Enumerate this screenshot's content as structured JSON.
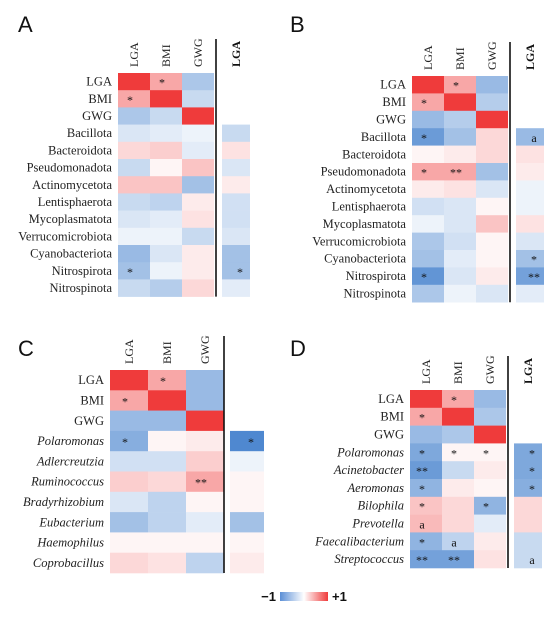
{
  "chart_data": [
    {
      "type": "heatmap",
      "panel": "A",
      "columns": [
        "LGA",
        "BMI",
        "GWG"
      ],
      "extra_column": "LGA",
      "rows": [
        "LGA",
        "BMI",
        "GWG",
        "Bacillota",
        "Bacteroidota",
        "Pseudomonadota",
        "Actinomycetota",
        "Lentisphaerota",
        "Mycoplasmatota",
        "Verrucomicrobiota",
        "Cyanobacteriota",
        "Nitrospirota",
        "Nitrospinota"
      ],
      "italic_from_row": 99,
      "values": [
        [
          1.0,
          0.45,
          -0.45,
          null
        ],
        [
          0.45,
          1.0,
          -0.3,
          null
        ],
        [
          -0.45,
          -0.3,
          1.0,
          null
        ],
        [
          -0.2,
          -0.15,
          -0.1,
          -0.3
        ],
        [
          0.2,
          0.25,
          -0.15,
          0.15
        ],
        [
          -0.3,
          0.05,
          0.3,
          -0.2
        ],
        [
          0.3,
          0.3,
          -0.5,
          0.1
        ],
        [
          -0.3,
          -0.35,
          0.1,
          -0.25
        ],
        [
          -0.2,
          -0.15,
          0.15,
          -0.25
        ],
        [
          -0.1,
          -0.1,
          -0.3,
          -0.2
        ],
        [
          -0.55,
          -0.2,
          0.1,
          -0.5
        ],
        [
          -0.5,
          -0.1,
          0.1,
          -0.5
        ],
        [
          -0.3,
          -0.4,
          0.2,
          -0.15
        ]
      ],
      "marks": [
        [
          "",
          "*",
          "",
          ""
        ],
        [
          "*",
          "",
          "",
          ""
        ],
        [
          "",
          "",
          "",
          ""
        ],
        [
          "",
          "",
          "",
          ""
        ],
        [
          "",
          "",
          "",
          ""
        ],
        [
          "",
          "",
          "",
          ""
        ],
        [
          "",
          "",
          "",
          ""
        ],
        [
          "",
          "",
          "",
          ""
        ],
        [
          "",
          "",
          "",
          ""
        ],
        [
          "",
          "",
          "",
          ""
        ],
        [
          "",
          "",
          "",
          ""
        ],
        [
          "*",
          "",
          "",
          "*"
        ],
        [
          "",
          "",
          "",
          ""
        ]
      ]
    },
    {
      "type": "heatmap",
      "panel": "B",
      "columns": [
        "LGA",
        "BMI",
        "GWG"
      ],
      "extra_column": "LGA",
      "rows": [
        "LGA",
        "BMI",
        "GWG",
        "Bacillota",
        "Bacteroidota",
        "Pseudomonadota",
        "Actinomycetota",
        "Lentisphaerota",
        "Mycoplasmatota",
        "Verrucomicrobiota",
        "Cyanobacteriota",
        "Nitrospirota",
        "Nitrospinota"
      ],
      "italic_from_row": 99,
      "values": [
        [
          1.0,
          0.45,
          -0.55,
          null
        ],
        [
          0.45,
          1.0,
          -0.4,
          null
        ],
        [
          -0.55,
          -0.4,
          1.0,
          null
        ],
        [
          -0.8,
          -0.5,
          0.2,
          -0.55
        ],
        [
          0.05,
          0.1,
          0.2,
          0.15
        ],
        [
          0.45,
          0.45,
          -0.5,
          0.1
        ],
        [
          0.1,
          0.15,
          -0.2,
          -0.1
        ],
        [
          -0.25,
          -0.2,
          0.05,
          -0.1
        ],
        [
          -0.1,
          -0.2,
          0.3,
          0.15
        ],
        [
          -0.45,
          -0.25,
          0.05,
          -0.2
        ],
        [
          -0.5,
          -0.15,
          0.05,
          -0.5
        ],
        [
          -0.85,
          -0.2,
          0.1,
          -0.75
        ],
        [
          -0.45,
          -0.1,
          -0.2,
          -0.15
        ]
      ],
      "marks": [
        [
          "",
          "*",
          "",
          ""
        ],
        [
          "*",
          "",
          "",
          ""
        ],
        [
          "",
          "",
          "",
          ""
        ],
        [
          "*",
          "",
          "",
          "a"
        ],
        [
          "",
          "",
          "",
          ""
        ],
        [
          "*",
          "**",
          "",
          ""
        ],
        [
          "",
          "",
          "",
          ""
        ],
        [
          "",
          "",
          "",
          ""
        ],
        [
          "",
          "",
          "",
          ""
        ],
        [
          "",
          "",
          "",
          ""
        ],
        [
          "",
          "",
          "",
          "*"
        ],
        [
          "*",
          "",
          "",
          "**"
        ],
        [
          "",
          "",
          "",
          ""
        ]
      ]
    },
    {
      "type": "heatmap",
      "panel": "C",
      "columns": [
        "LGA",
        "BMI",
        "GWG"
      ],
      "extra_column": "",
      "rows": [
        "LGA",
        "BMI",
        "GWG",
        "Polaromonas",
        "Adlercreutzia",
        "Ruminococcus",
        "Bradyrhizobium",
        "Eubacterium",
        "Haemophilus",
        "Coprobacillus"
      ],
      "italic_from_row": 3,
      "values": [
        [
          1.0,
          0.45,
          -0.55,
          null
        ],
        [
          0.45,
          1.0,
          -0.55,
          null
        ],
        [
          -0.55,
          -0.55,
          1.0,
          null
        ],
        [
          -0.65,
          0.05,
          0.1,
          -0.95
        ],
        [
          -0.25,
          -0.25,
          0.25,
          -0.1
        ],
        [
          0.25,
          0.2,
          0.45,
          0.05
        ],
        [
          -0.2,
          -0.35,
          0.05,
          0.05
        ],
        [
          -0.5,
          -0.35,
          -0.15,
          -0.5
        ],
        [
          0.05,
          0.05,
          0.05,
          0.05
        ],
        [
          0.2,
          0.15,
          -0.35,
          0.1
        ]
      ],
      "marks": [
        [
          "",
          "*",
          "",
          ""
        ],
        [
          "*",
          "",
          "",
          ""
        ],
        [
          "",
          "",
          "",
          ""
        ],
        [
          "*",
          "",
          "",
          "*"
        ],
        [
          "",
          "",
          "",
          ""
        ],
        [
          "",
          "",
          "**",
          ""
        ],
        [
          "",
          "",
          "",
          ""
        ],
        [
          "",
          "",
          "",
          ""
        ],
        [
          "",
          "",
          "",
          ""
        ],
        [
          "",
          "",
          "",
          ""
        ]
      ]
    },
    {
      "type": "heatmap",
      "panel": "D",
      "columns": [
        "LGA",
        "BMI",
        "GWG"
      ],
      "extra_column": "LGA",
      "rows": [
        "LGA",
        "BMI",
        "GWG",
        "Polaromonas",
        "Acinetobacter",
        "Aeromonas",
        "Bilophila",
        "Prevotella",
        "Faecalibacterium",
        "Streptococcus"
      ],
      "italic_from_row": 3,
      "values": [
        [
          1.0,
          0.45,
          -0.55,
          null
        ],
        [
          0.45,
          1.0,
          -0.45,
          null
        ],
        [
          -0.55,
          -0.45,
          1.0,
          null
        ],
        [
          -0.7,
          0.05,
          0.05,
          -0.7
        ],
        [
          -0.8,
          -0.3,
          0.1,
          -0.7
        ],
        [
          -0.6,
          0.1,
          0.05,
          -0.65
        ],
        [
          0.3,
          0.2,
          -0.6,
          0.2
        ],
        [
          0.35,
          0.2,
          -0.15,
          0.2
        ],
        [
          -0.6,
          -0.35,
          0.1,
          -0.3
        ],
        [
          -0.75,
          -0.75,
          0.15,
          -0.3
        ]
      ],
      "marks": [
        [
          "",
          "*",
          "",
          ""
        ],
        [
          "*",
          "",
          "",
          ""
        ],
        [
          "",
          "",
          "",
          ""
        ],
        [
          "*",
          "*",
          "*",
          "*"
        ],
        [
          "**",
          "",
          "",
          "*"
        ],
        [
          "*",
          "",
          "",
          "*"
        ],
        [
          "*",
          "",
          "*",
          ""
        ],
        [
          "a",
          "",
          "",
          ""
        ],
        [
          "*",
          "a",
          "",
          ""
        ],
        [
          "**",
          "**",
          "",
          "a"
        ]
      ]
    }
  ],
  "legend": {
    "min_label": "−1",
    "max_label": "+1"
  }
}
